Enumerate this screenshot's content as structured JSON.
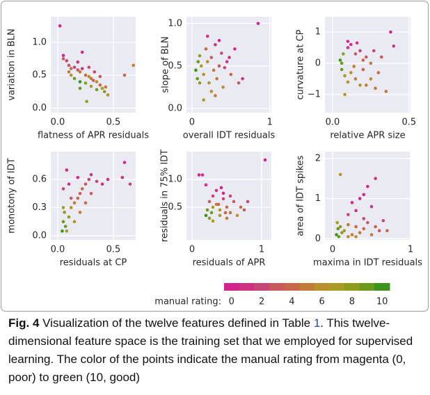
{
  "chart_data": [
    {
      "type": "scatter",
      "xlabel": "flatness of APR residuals",
      "ylabel": "variation in BLN",
      "grid": true,
      "xlim": [
        -0.0625,
        0.7
      ],
      "ylim": [
        -0.07,
        1.39
      ],
      "xticks": [
        {
          "value": 0,
          "label": "0.0"
        },
        {
          "value": 0.5,
          "label": "0.5"
        }
      ],
      "yticks": [
        {
          "value": 0,
          "label": "0.0"
        },
        {
          "value": 0.5,
          "label": "0.5"
        },
        {
          "value": 1,
          "label": "1.0"
        }
      ],
      "x": [
        0.02,
        0.05,
        0.08,
        0.1,
        0.12,
        0.15,
        0.18,
        0.2,
        0.22,
        0.25,
        0.28,
        0.3,
        0.32,
        0.35,
        0.38,
        0.4,
        0.42,
        0.45,
        0.15,
        0.2,
        0.25,
        0.3,
        0.35,
        0.1,
        0.12,
        0.18,
        0.22,
        0.28,
        0.05,
        0.33,
        0.38,
        0.43,
        0.6,
        0.68,
        0.2,
        0.26
      ],
      "y": [
        1.25,
        0.8,
        0.72,
        0.65,
        0.6,
        0.62,
        0.58,
        0.55,
        0.6,
        0.5,
        0.48,
        0.45,
        0.42,
        0.4,
        0.35,
        0.3,
        0.25,
        0.2,
        0.45,
        0.4,
        0.38,
        0.33,
        0.28,
        0.55,
        0.5,
        0.7,
        0.85,
        0.62,
        0.75,
        0.55,
        0.48,
        0.32,
        0.5,
        0.65,
        0.3,
        0.1
      ],
      "rating": [
        0,
        0,
        2,
        3,
        4,
        2,
        3,
        5,
        1,
        4,
        6,
        5,
        3,
        6,
        4,
        7,
        8,
        6,
        9,
        10,
        8,
        7,
        9,
        5,
        6,
        1,
        0,
        2,
        3,
        2,
        3,
        5,
        4,
        5,
        9,
        8
      ]
    },
    {
      "type": "scatter",
      "xlabel": "overall IDT residuals",
      "ylabel": "slope of BLN",
      "grid": true,
      "xlim": [
        -0.07,
        1.02
      ],
      "ylim": [
        -0.05,
        1.08
      ],
      "xticks": [
        0,
        1
      ],
      "yticks": [
        {
          "value": 0,
          "label": "0.0"
        },
        {
          "value": 0.5,
          "label": "0.5"
        },
        {
          "value": 1,
          "label": "1.0"
        }
      ],
      "x": [
        0.05,
        0.07,
        0.08,
        0.1,
        0.12,
        0.1,
        0.15,
        0.18,
        0.2,
        0.22,
        0.25,
        0.28,
        0.3,
        0.32,
        0.35,
        0.38,
        0.4,
        0.45,
        0.5,
        0.55,
        0.6,
        0.2,
        0.25,
        0.3,
        0.15,
        0.35,
        0.42,
        0.48,
        0.65,
        0.85
      ],
      "y": [
        0.45,
        0.35,
        0.55,
        0.3,
        0.5,
        0.62,
        0.4,
        0.7,
        0.55,
        0.3,
        0.6,
        0.45,
        0.75,
        0.35,
        0.5,
        0.65,
        0.25,
        0.55,
        0.4,
        0.7,
        0.3,
        0.85,
        0.2,
        0.15,
        0.1,
        0.8,
        0.48,
        0.6,
        0.35,
        1.0
      ],
      "rating": [
        10,
        9,
        9,
        8,
        7,
        8,
        6,
        4,
        6,
        7,
        3,
        5,
        1,
        5,
        3,
        2,
        6,
        1,
        4,
        0,
        3,
        1,
        6,
        5,
        7,
        0,
        2,
        1,
        1,
        0
      ]
    },
    {
      "type": "scatter",
      "xlabel": "relative APR size",
      "ylabel": "curvature at CP",
      "grid": true,
      "xlim": [
        -0.05,
        0.51
      ],
      "ylim": [
        -1.58,
        1.49
      ],
      "xticks": [
        {
          "value": 0,
          "label": "0.0"
        },
        {
          "value": 0.5,
          "label": "0.5"
        }
      ],
      "yticks": [
        {
          "value": -1,
          "label": "−1"
        },
        0,
        1
      ],
      "x": [
        0.05,
        0.06,
        0.07,
        0.08,
        0.06,
        0.1,
        0.12,
        0.15,
        0.18,
        0.2,
        0.22,
        0.25,
        0.1,
        0.12,
        0.15,
        0.18,
        0.2,
        0.25,
        0.28,
        0.3,
        0.08,
        0.1,
        0.14,
        0.16,
        0.22,
        0.32,
        0.38,
        0.4,
        0.35,
        0.27
      ],
      "y": [
        0.1,
        -0.2,
        0.3,
        -0.4,
        0.0,
        0.5,
        0.6,
        0.3,
        0.4,
        0.1,
        0.2,
        0.0,
        -0.6,
        -0.3,
        -0.5,
        -0.7,
        -0.2,
        -0.5,
        -0.8,
        -0.3,
        -1.0,
        0.7,
        -0.1,
        0.65,
        -0.7,
        0.2,
        1.0,
        0.55,
        -0.9,
        0.4
      ],
      "rating": [
        10,
        9,
        8,
        7,
        9,
        1,
        0,
        3,
        2,
        4,
        3,
        5,
        6,
        6,
        5,
        6,
        4,
        6,
        5,
        4,
        7,
        0,
        5,
        1,
        5,
        3,
        0,
        1,
        5,
        2
      ]
    },
    {
      "type": "scatter",
      "xlabel": "residuals at CP",
      "ylabel": "monotony of IDT",
      "grid": true,
      "xlim": [
        -0.0625,
        0.7
      ],
      "ylim": [
        -0.044,
        0.896
      ],
      "xticks": [
        {
          "value": 0,
          "label": "0.0"
        },
        {
          "value": 0.5,
          "label": "0.5"
        }
      ],
      "yticks": [
        {
          "value": 0,
          "label": "0.0"
        },
        0.3,
        0.6
      ],
      "x": [
        0.04,
        0.05,
        0.06,
        0.07,
        0.05,
        0.08,
        0.1,
        0.12,
        0.15,
        0.18,
        0.2,
        0.22,
        0.25,
        0.28,
        0.3,
        0.1,
        0.12,
        0.15,
        0.2,
        0.25,
        0.3,
        0.08,
        0.18,
        0.35,
        0.4,
        0.45,
        0.58,
        0.6,
        0.65,
        0.05
      ],
      "y": [
        0.05,
        0.15,
        0.25,
        0.1,
        0.3,
        0.05,
        0.2,
        0.3,
        0.35,
        0.4,
        0.45,
        0.5,
        0.55,
        0.6,
        0.65,
        0.55,
        0.4,
        0.15,
        0.25,
        0.35,
        0.45,
        0.7,
        0.62,
        0.58,
        0.55,
        0.6,
        0.62,
        0.78,
        0.55,
        0.5
      ],
      "rating": [
        10,
        9,
        8,
        9,
        7,
        7,
        8,
        6,
        5,
        4,
        3,
        4,
        3,
        2,
        1,
        1,
        3,
        6,
        5,
        4,
        3,
        0,
        0,
        2,
        1,
        1,
        1,
        0,
        2,
        2
      ]
    },
    {
      "type": "scatter",
      "xlabel": "residuals of APR",
      "ylabel": "residuals in 75% IDT",
      "grid": true,
      "xlim": [
        -0.08,
        1.14
      ],
      "ylim": [
        -0.09,
        1.5
      ],
      "xticks": [
        0,
        1
      ],
      "yticks": [
        0.5,
        {
          "value": 1,
          "label": "1.0"
        }
      ],
      "x": [
        0.2,
        0.22,
        0.25,
        0.28,
        0.3,
        0.2,
        0.25,
        0.3,
        0.35,
        0.4,
        0.45,
        0.5,
        0.55,
        0.6,
        0.65,
        0.7,
        0.35,
        0.4,
        0.45,
        0.5,
        0.3,
        0.38,
        0.42,
        0.55,
        0.75,
        0.8,
        0.1,
        0.15,
        1.05,
        0.48
      ],
      "y": [
        0.35,
        0.45,
        0.3,
        0.4,
        0.5,
        0.9,
        0.6,
        0.7,
        0.55,
        0.45,
        0.65,
        0.5,
        0.4,
        0.6,
        0.35,
        0.5,
        0.8,
        0.35,
        0.75,
        0.3,
        0.25,
        0.55,
        0.85,
        0.7,
        0.45,
        0.6,
        1.08,
        1.08,
        1.35,
        0.4
      ],
      "rating": [
        10,
        9,
        8,
        9,
        7,
        1,
        3,
        2,
        5,
        6,
        2,
        4,
        5,
        3,
        6,
        4,
        1,
        6,
        0,
        5,
        7,
        4,
        0,
        2,
        3,
        2,
        0,
        1,
        0,
        4
      ]
    },
    {
      "type": "scatter",
      "xlabel": "maxima in IDT residuals",
      "ylabel": "area of IDT spikes",
      "grid": true,
      "xlim": [
        -0.098,
        1.0
      ],
      "ylim": [
        -0.03,
        2.17
      ],
      "xticks": [
        0,
        1
      ],
      "yticks": [
        0,
        1,
        2
      ],
      "x": [
        0.05,
        0.07,
        0.08,
        0.1,
        0.12,
        0.06,
        0.15,
        0.2,
        0.25,
        0.3,
        0.35,
        0.4,
        0.45,
        0.5,
        0.55,
        0.6,
        0.2,
        0.3,
        0.4,
        0.25,
        0.35,
        0.5,
        0.1,
        0.45,
        0.55,
        0.65,
        0.7,
        0.3,
        0.2,
        0.4
      ],
      "y": [
        0.1,
        0.25,
        0.05,
        0.3,
        0.15,
        0.4,
        0.2,
        0.35,
        0.1,
        0.3,
        0.15,
        0.25,
        0.4,
        0.1,
        0.3,
        0.2,
        0.6,
        0.7,
        0.5,
        0.9,
        1.0,
        0.8,
        1.6,
        1.3,
        1.5,
        0.45,
        0.2,
        0.05,
        0.05,
        1.1
      ],
      "rating": [
        10,
        9,
        9,
        8,
        8,
        7,
        6,
        5,
        5,
        4,
        5,
        4,
        3,
        5,
        4,
        3,
        2,
        1,
        2,
        1,
        0,
        1,
        6,
        0,
        1,
        2,
        4,
        6,
        6,
        0
      ]
    }
  ],
  "colorbar": {
    "label": "manual rating:",
    "lim": [
      -0.5,
      10.5
    ],
    "ticks": [
      0,
      2,
      4,
      6,
      8,
      10
    ],
    "colors": [
      "#d0268e",
      "#cc3482",
      "#c84676",
      "#c85a5c",
      "#c86848",
      "#c27a38",
      "#b8902a",
      "#a89a22",
      "#8e9c1e",
      "#6a9a1c",
      "#3c941c"
    ]
  },
  "caption": {
    "label": "Fig. 4",
    "text": "Visualization of the twelve features defined in Table ",
    "link": "1",
    "rest": ". This twelve-dimensional feature space is the training set that we employed for supervised learning. The color of the points indicate the manual rating from magenta (0, poor) to green (10, good)"
  }
}
